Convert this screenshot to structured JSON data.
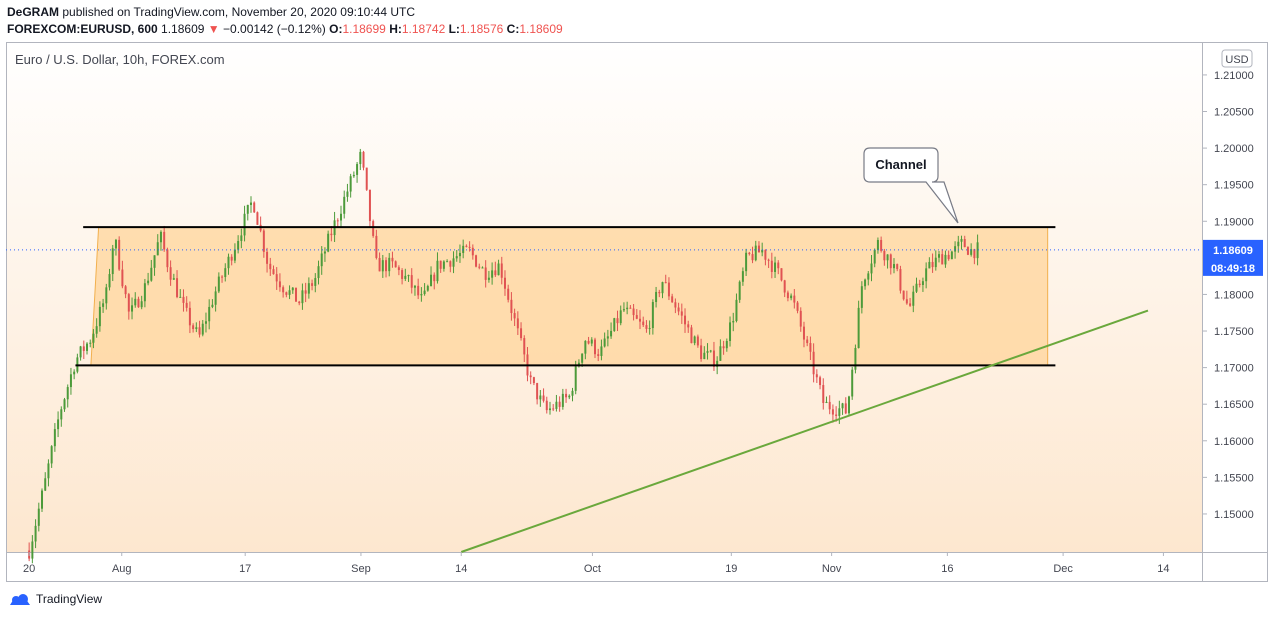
{
  "header": {
    "publisher": "DeGRAM",
    "published_text": "published on TradingView.com, November 20, 2020 09:10:44 UTC",
    "symbol": "FOREXCOM:EURUSD, 600",
    "last": "1.18609",
    "arrow": "▼",
    "change": "−0.00142 (−0.12%)",
    "o_label": "O:",
    "o_value": "1.18699",
    "h_label": "H:",
    "h_value": "1.18742",
    "l_label": "L:",
    "l_value": "1.18576",
    "c_label": "C:",
    "c_value": "1.18609"
  },
  "footer": {
    "brand": "TradingView"
  },
  "colors": {
    "up": "#26a69a",
    "up_body": "#4c9a3a",
    "down": "#e05252",
    "channel_fill": "#ffd49a",
    "trend": "#6aa83c",
    "price_label": "#2962ff"
  },
  "chart_data": {
    "type": "candlestick",
    "title": "Euro / U.S. Dollar, 10h, FOREX.com",
    "currency_label": "USD",
    "ylim": [
      1.1448,
      1.2145
    ],
    "yticks": [
      "1.21000",
      "1.20500",
      "1.20000",
      "1.19500",
      "1.19000",
      "1.18500",
      "1.18000",
      "1.17500",
      "1.17000",
      "1.16500",
      "1.16000",
      "1.15500",
      "1.15000"
    ],
    "x_ticks": [
      {
        "label": "20",
        "date": "2020-07-20"
      },
      {
        "label": "Aug",
        "date": "2020-08-01"
      },
      {
        "label": "17",
        "date": "2020-08-17"
      },
      {
        "label": "Sep",
        "date": "2020-09-01"
      },
      {
        "label": "14",
        "date": "2020-09-14"
      },
      {
        "label": "Oct",
        "date": "2020-10-01"
      },
      {
        "label": "19",
        "date": "2020-10-19"
      },
      {
        "label": "Nov",
        "date": "2020-11-01"
      },
      {
        "label": "16",
        "date": "2020-11-16"
      },
      {
        "label": "Dec",
        "date": "2020-12-01"
      },
      {
        "label": "14",
        "date": "2020-12-14"
      }
    ],
    "xlim": [
      "2020-07-17",
      "2020-12-19"
    ],
    "last_price": "1.18609",
    "countdown": "08:49:18",
    "anchors": [
      [
        "2020-07-20",
        1.145
      ],
      [
        "2020-07-22",
        1.154
      ],
      [
        "2020-07-24",
        1.164
      ],
      [
        "2020-07-26",
        1.171
      ],
      [
        "2020-07-28",
        1.174
      ],
      [
        "2020-07-30",
        1.18
      ],
      [
        "2020-07-31",
        1.188
      ],
      [
        "2020-08-02",
        1.177
      ],
      [
        "2020-08-04",
        1.181
      ],
      [
        "2020-08-06",
        1.188
      ],
      [
        "2020-08-07",
        1.184
      ],
      [
        "2020-08-09",
        1.178
      ],
      [
        "2020-08-11",
        1.174
      ],
      [
        "2020-08-13",
        1.18
      ],
      [
        "2020-08-15",
        1.185
      ],
      [
        "2020-08-18",
        1.193
      ],
      [
        "2020-08-20",
        1.184
      ],
      [
        "2020-08-22",
        1.181
      ],
      [
        "2020-08-24",
        1.179
      ],
      [
        "2020-08-26",
        1.182
      ],
      [
        "2020-08-28",
        1.188
      ],
      [
        "2020-09-01",
        1.199
      ],
      [
        "2020-09-03",
        1.184
      ],
      [
        "2020-09-05",
        1.184
      ],
      [
        "2020-09-07",
        1.182
      ],
      [
        "2020-09-09",
        1.179
      ],
      [
        "2020-09-11",
        1.184
      ],
      [
        "2020-09-13",
        1.185
      ],
      [
        "2020-09-15",
        1.186
      ],
      [
        "2020-09-17",
        1.183
      ],
      [
        "2020-09-19",
        1.184
      ],
      [
        "2020-09-21",
        1.176
      ],
      [
        "2020-09-23",
        1.168
      ],
      [
        "2020-09-25",
        1.164
      ],
      [
        "2020-09-28",
        1.166
      ],
      [
        "2020-09-30",
        1.174
      ],
      [
        "2020-10-02",
        1.172
      ],
      [
        "2020-10-05",
        1.178
      ],
      [
        "2020-10-08",
        1.175
      ],
      [
        "2020-10-10",
        1.182
      ],
      [
        "2020-10-13",
        1.176
      ],
      [
        "2020-10-15",
        1.172
      ],
      [
        "2020-10-17",
        1.171
      ],
      [
        "2020-10-19",
        1.176
      ],
      [
        "2020-10-21",
        1.185
      ],
      [
        "2020-10-23",
        1.186
      ],
      [
        "2020-10-25",
        1.183
      ],
      [
        "2020-10-27",
        1.179
      ],
      [
        "2020-10-29",
        1.172
      ],
      [
        "2020-10-31",
        1.165
      ],
      [
        "2020-11-03",
        1.164
      ],
      [
        "2020-11-05",
        1.182
      ],
      [
        "2020-11-07",
        1.187
      ],
      [
        "2020-11-09",
        1.184
      ],
      [
        "2020-11-11",
        1.178
      ],
      [
        "2020-11-13",
        1.183
      ],
      [
        "2020-11-15",
        1.185
      ],
      [
        "2020-11-17",
        1.186
      ],
      [
        "2020-11-18",
        1.187
      ],
      [
        "2020-11-19",
        1.186
      ],
      [
        "2020-11-20",
        1.1861
      ]
    ],
    "annotations": {
      "channel_label": "Channel",
      "resistance": {
        "from": "2020-07-27",
        "to": "2020-11-30",
        "price": 1.1892
      },
      "support": {
        "from": "2020-07-26",
        "to": "2020-11-30",
        "price": 1.1703
      },
      "channel_box": {
        "left_bottom": "2020-07-28",
        "left_top": "2020-07-29",
        "right": "2020-11-29",
        "top": 1.1892,
        "bottom": 1.1703
      },
      "trendline": {
        "from": [
          "2020-09-14",
          1.1448
        ],
        "to": [
          "2020-12-12",
          1.1778
        ]
      }
    }
  }
}
